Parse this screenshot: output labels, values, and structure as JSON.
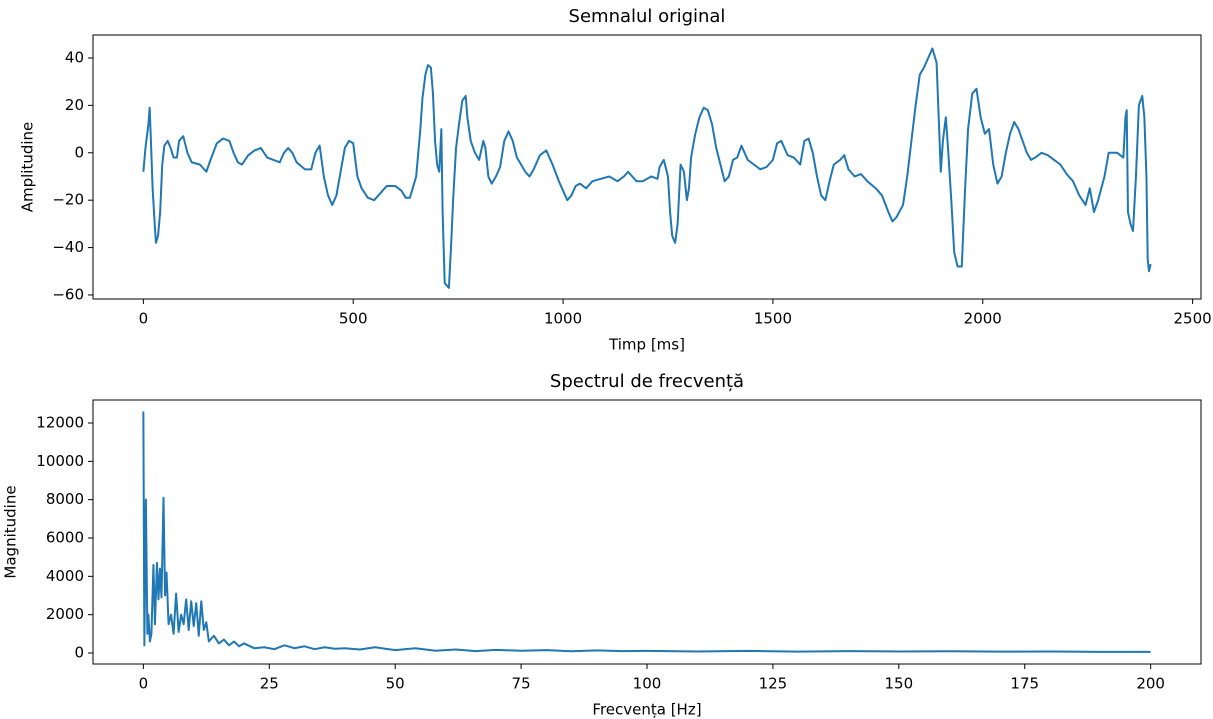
{
  "chart_data": [
    {
      "type": "line",
      "title": "Semnalul original",
      "x_label": "Timp [ms]",
      "y_label": "Amplitudine",
      "xlim": [
        -120,
        2520
      ],
      "ylim": [
        -61.7,
        49.7
      ],
      "xticks": [
        0,
        500,
        1000,
        1500,
        2000,
        2500
      ],
      "yticks": [
        {
          "value": -60,
          "label": "−60"
        },
        {
          "value": -40,
          "label": "−40"
        },
        {
          "value": -20,
          "label": "−20"
        },
        0,
        20,
        40
      ],
      "x": [
        0,
        5,
        12,
        15,
        18,
        22,
        27,
        30,
        35,
        40,
        45,
        50,
        58,
        65,
        72,
        80,
        85,
        95,
        105,
        115,
        135,
        150,
        160,
        175,
        190,
        205,
        215,
        225,
        235,
        250,
        265,
        280,
        295,
        310,
        325,
        335,
        345,
        355,
        365,
        385,
        400,
        410,
        420,
        430,
        440,
        450,
        460,
        470,
        480,
        490,
        500,
        510,
        520,
        535,
        550,
        565,
        580,
        600,
        615,
        625,
        635,
        650,
        660,
        665,
        672,
        678,
        685,
        690,
        695,
        700,
        705,
        710,
        713,
        718,
        723,
        728,
        733,
        738,
        745,
        752,
        760,
        768,
        772,
        780,
        790,
        800,
        810,
        815,
        822,
        830,
        840,
        850,
        860,
        870,
        880,
        890,
        900,
        910,
        920,
        930,
        945,
        960,
        975,
        990,
        1000,
        1010,
        1020,
        1030,
        1040,
        1055,
        1070,
        1090,
        1110,
        1130,
        1145,
        1155,
        1165,
        1175,
        1190,
        1210,
        1225,
        1230,
        1240,
        1250,
        1255,
        1260,
        1267,
        1273,
        1280,
        1288,
        1295,
        1300,
        1305,
        1315,
        1325,
        1335,
        1345,
        1355,
        1365,
        1375,
        1385,
        1395,
        1405,
        1415,
        1425,
        1440,
        1455,
        1470,
        1485,
        1500,
        1510,
        1520,
        1535,
        1550,
        1565,
        1575,
        1585,
        1595,
        1605,
        1615,
        1625,
        1635,
        1645,
        1660,
        1670,
        1680,
        1695,
        1710,
        1725,
        1745,
        1760,
        1775,
        1785,
        1795,
        1810,
        1820,
        1830,
        1840,
        1850,
        1860,
        1870,
        1880,
        1890,
        1895,
        1900,
        1905,
        1912,
        1918,
        1925,
        1932,
        1940,
        1950,
        1958,
        1965,
        1975,
        1985,
        1995,
        2005,
        2015,
        2025,
        2035,
        2045,
        2055,
        2065,
        2075,
        2085,
        2095,
        2105,
        2115,
        2125,
        2140,
        2155,
        2170,
        2185,
        2200,
        2215,
        2230,
        2245,
        2255,
        2265,
        2275,
        2290,
        2300,
        2320,
        2335,
        2340,
        2343,
        2346,
        2352,
        2358,
        2365,
        2372,
        2380,
        2385,
        2390,
        2393,
        2396,
        2400
      ],
      "series": [
        {
          "color": "#1f77b4",
          "values": [
            -8,
            2,
            12,
            19,
            5,
            -15,
            -30,
            -38,
            -35,
            -25,
            -5,
            3,
            5,
            2,
            -2,
            -2,
            5,
            7,
            0,
            -4,
            -5,
            -8,
            -3,
            4,
            6,
            5,
            0,
            -4,
            -5,
            -1,
            1,
            2,
            -2,
            -3,
            -4,
            0,
            2,
            0,
            -4,
            -7,
            -7,
            0,
            3,
            -10,
            -18,
            -22,
            -18,
            -8,
            2,
            5,
            4,
            -10,
            -15,
            -19,
            -20,
            -17,
            -14,
            -14,
            -16,
            -19,
            -19,
            -10,
            10,
            23,
            33,
            37,
            36,
            25,
            5,
            -5,
            -8,
            10,
            -25,
            -55,
            -56,
            -57,
            -40,
            -20,
            2,
            12,
            22,
            24,
            15,
            5,
            0,
            -3,
            5,
            2,
            -10,
            -13,
            -10,
            -6,
            5,
            9,
            5,
            -2,
            -5,
            -8,
            -10,
            -7,
            -1,
            1,
            -5,
            -12,
            -16,
            -20,
            -18,
            -14,
            -13,
            -15,
            -12,
            -11,
            -10,
            -12,
            -10,
            -8,
            -10,
            -12,
            -12,
            -10,
            -11,
            -6,
            -3,
            -10,
            -25,
            -35,
            -38,
            -30,
            -5,
            -8,
            -20,
            -15,
            -2,
            8,
            15,
            19,
            18,
            12,
            2,
            -5,
            -12,
            -10,
            -3,
            -2,
            3,
            -3,
            -5,
            -7,
            -6,
            -3,
            4,
            5,
            -1,
            -2,
            -5,
            5,
            6,
            0,
            -10,
            -18,
            -20,
            -12,
            -5,
            -3,
            -1,
            -7,
            -10,
            -9,
            -12,
            -15,
            -18,
            -25,
            -29,
            -27,
            -22,
            -10,
            5,
            20,
            33,
            36,
            40,
            44,
            38,
            15,
            -8,
            5,
            15,
            0,
            -20,
            -42,
            -48,
            -48,
            -15,
            10,
            25,
            27,
            15,
            8,
            10,
            -5,
            -13,
            -10,
            0,
            8,
            13,
            10,
            5,
            0,
            -3,
            -2,
            0,
            -1,
            -3,
            -5,
            -9,
            -12,
            -18,
            -22,
            -15,
            -25,
            -20,
            -10,
            0,
            0,
            -2,
            15,
            18,
            -25,
            -30,
            -33,
            -10,
            20,
            24,
            15,
            -10,
            -45,
            -50,
            -47
          ]
        }
      ]
    },
    {
      "type": "line",
      "title": "Spectrul de frecvență",
      "x_label": "Frecvența [Hz]",
      "y_label": "Magnitudine",
      "xlim": [
        -10,
        210
      ],
      "ylim": [
        -574,
        13200
      ],
      "xticks": [
        0,
        25,
        50,
        75,
        100,
        125,
        150,
        175,
        200
      ],
      "yticks": [
        0,
        2000,
        4000,
        6000,
        8000,
        10000,
        12000
      ],
      "x": [
        0,
        0.2,
        0.5,
        0.8,
        1.0,
        1.3,
        1.6,
        2.0,
        2.3,
        2.7,
        3.0,
        3.3,
        3.6,
        4.0,
        4.3,
        4.6,
        5,
        5.5,
        6,
        6.5,
        7,
        7.5,
        8,
        8.5,
        9,
        9.5,
        10,
        10.5,
        11,
        11.5,
        12,
        12.5,
        13,
        14,
        15,
        16,
        17,
        18,
        19,
        20,
        22,
        24,
        26,
        28,
        30,
        32,
        34,
        36,
        38,
        40,
        43,
        46,
        50,
        54,
        58,
        62,
        66,
        70,
        75,
        80,
        85,
        90,
        95,
        100,
        110,
        120,
        130,
        140,
        150,
        160,
        170,
        180,
        190,
        200
      ],
      "series": [
        {
          "color": "#1f77b4",
          "values": [
            12600,
            400,
            8000,
            1000,
            2000,
            600,
            1000,
            4600,
            1500,
            4700,
            2800,
            4400,
            2900,
            8100,
            3000,
            4200,
            1500,
            2000,
            1000,
            3100,
            1100,
            2000,
            1500,
            2800,
            1200,
            2700,
            1400,
            2600,
            900,
            2700,
            1200,
            1600,
            600,
            900,
            500,
            700,
            400,
            600,
            350,
            500,
            250,
            300,
            200,
            400,
            250,
            350,
            200,
            300,
            220,
            250,
            180,
            300,
            150,
            250,
            120,
            180,
            100,
            160,
            120,
            150,
            90,
            140,
            100,
            110,
            80,
            110,
            70,
            100,
            80,
            90,
            70,
            80,
            60,
            60
          ]
        }
      ]
    }
  ]
}
